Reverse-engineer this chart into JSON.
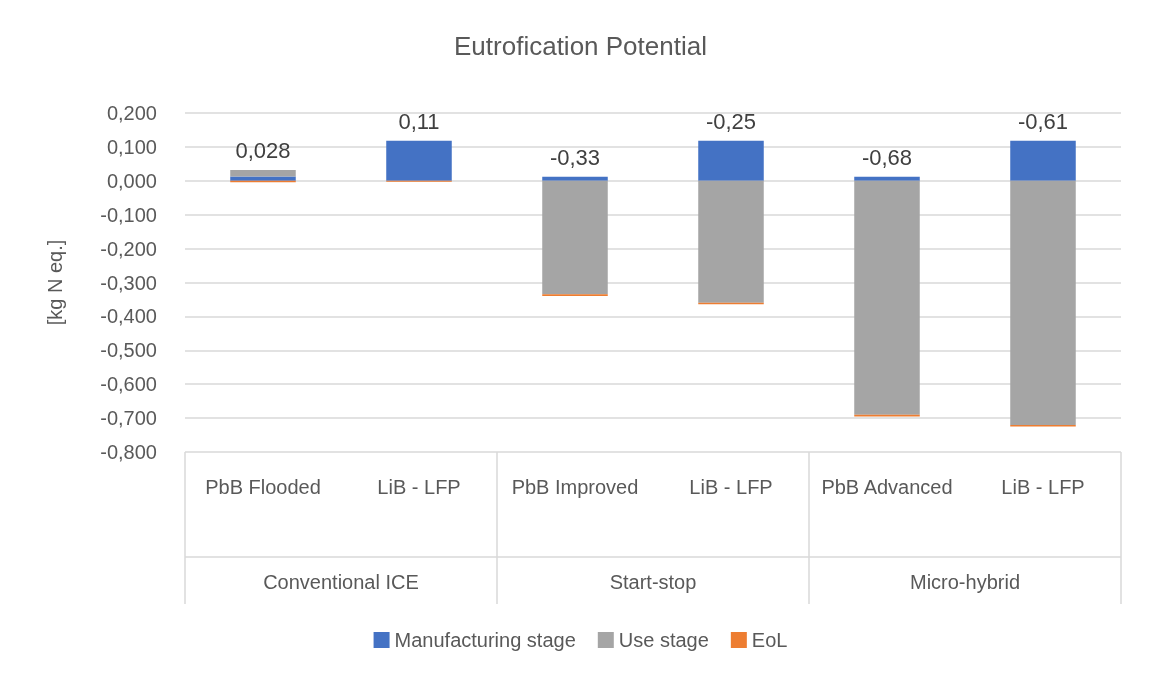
{
  "chart_data": {
    "type": "bar",
    "title": "Eutrofication Potential",
    "ylabel": "[kg N eq.]",
    "categories": [
      "PbB Flooded",
      "LiB - LFP",
      "PbB Improved",
      "LiB - LFP",
      "PbB Advanced",
      "LiB - LFP"
    ],
    "annotations": [
      "Conventional ICE",
      "Start-stop",
      "Micro-hybrid"
    ],
    "stacked": true,
    "series": [
      {
        "name": "Manufacturing stage",
        "color": "#4472c4",
        "values": [
          0.013,
          0.118,
          0.012,
          0.118,
          0.012,
          0.118
        ]
      },
      {
        "name": "Use stage",
        "color": "#a5a5a5",
        "values": [
          0.019,
          null,
          -0.335,
          -0.36,
          -0.69,
          -0.72
        ]
      },
      {
        "name": "EoL",
        "color": "#ed7d31",
        "values": [
          -0.004,
          -0.003,
          -0.005,
          -0.004,
          -0.005,
          -0.005
        ]
      }
    ],
    "totals": [
      "0,028",
      "0,11",
      "-0,33",
      "-0,25",
      "-0,68",
      "-0,61"
    ],
    "ylim": [
      -0.8,
      0.2
    ],
    "yticks": [
      {
        "value": -0.8,
        "label": "-0,800"
      },
      {
        "value": -0.7,
        "label": "-0,700"
      },
      {
        "value": -0.6,
        "label": "-0,600"
      },
      {
        "value": -0.5,
        "label": "-0,500"
      },
      {
        "value": -0.4,
        "label": "-0,400"
      },
      {
        "value": -0.3,
        "label": "-0,300"
      },
      {
        "value": -0.2,
        "label": "-0,200"
      },
      {
        "value": -0.1,
        "label": "-0,100"
      },
      {
        "value": 0,
        "label": "0,000"
      },
      {
        "value": 0.1,
        "label": "0,100"
      },
      {
        "value": 0.2,
        "label": "0,200"
      }
    ],
    "grid": "y",
    "legend": "bottom"
  }
}
